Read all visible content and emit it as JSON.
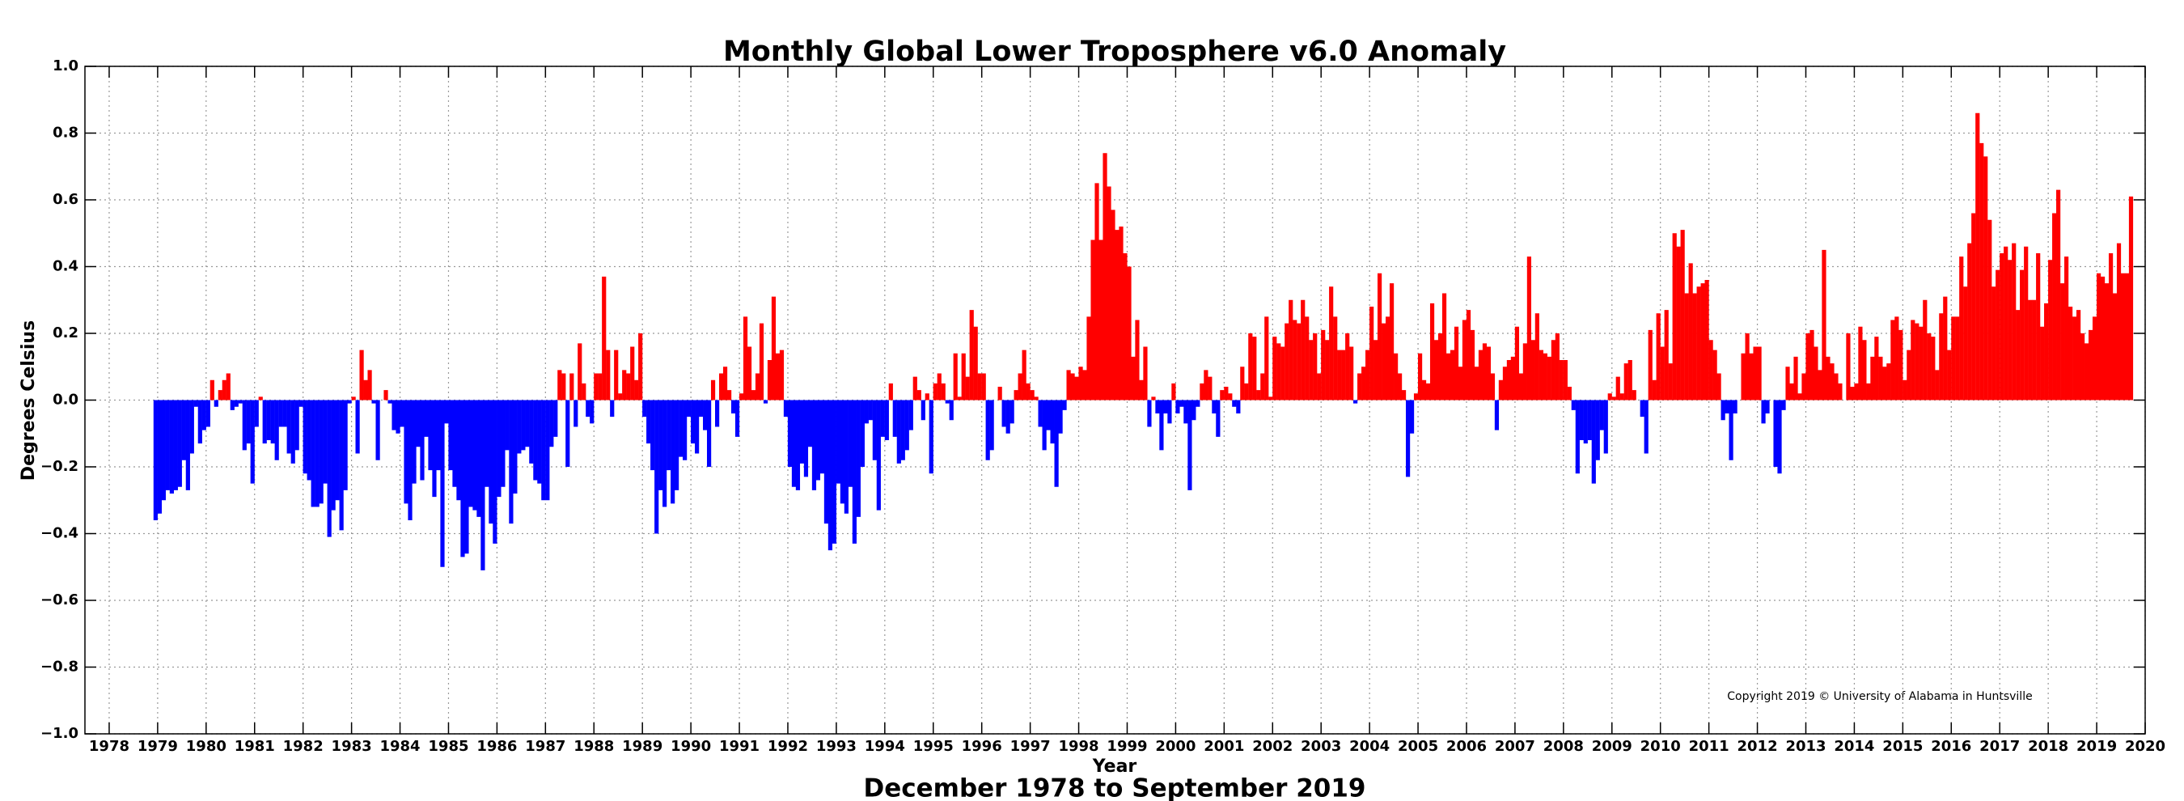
{
  "chart_data": {
    "type": "bar",
    "title": "Monthly Global Lower Troposphere v6.0 Anomaly",
    "subtitle": "December 1978 to September 2019",
    "xlabel": "Year",
    "ylabel": "Degrees Celsius",
    "annotation": "Copyright 2019 © University of Alabama in Huntsville",
    "positive_color": "#ff0000",
    "negative_color": "#0000ff",
    "grid": true,
    "xlim": [
      1977.5,
      2020
    ],
    "xticks": [
      1978,
      1979,
      1980,
      1981,
      1982,
      1983,
      1984,
      1985,
      1986,
      1987,
      1988,
      1989,
      1990,
      1991,
      1992,
      1993,
      1994,
      1995,
      1996,
      1997,
      1998,
      1999,
      2000,
      2001,
      2002,
      2003,
      2004,
      2005,
      2006,
      2007,
      2008,
      2009,
      2010,
      2011,
      2012,
      2013,
      2014,
      2015,
      2016,
      2017,
      2018,
      2019,
      2020
    ],
    "ylim": [
      -1,
      1
    ],
    "yticks": [
      {
        "value": -1,
        "label": "−1.0"
      },
      {
        "value": -0.8,
        "label": "−0.8"
      },
      {
        "value": -0.6,
        "label": "−0.6"
      },
      {
        "value": -0.4,
        "label": "−0.4"
      },
      {
        "value": -0.2,
        "label": "−0.2"
      },
      {
        "value": 0,
        "label": "0.0"
      },
      {
        "value": 0.2,
        "label": "0.2"
      },
      {
        "value": 0.4,
        "label": "0.4"
      },
      {
        "value": 0.6,
        "label": "0.6"
      },
      {
        "value": 0.8,
        "label": "0.8"
      },
      {
        "value": 1,
        "label": "1.0"
      }
    ],
    "x": [
      1978.958,
      1979.042,
      1979.125,
      1979.208,
      1979.292,
      1979.375,
      1979.458,
      1979.542,
      1979.625,
      1979.708,
      1979.792,
      1979.875,
      1979.958,
      1980.042,
      1980.125,
      1980.208,
      1980.292,
      1980.375,
      1980.458,
      1980.542,
      1980.625,
      1980.708,
      1980.792,
      1980.875,
      1980.958,
      1981.042,
      1981.125,
      1981.208,
      1981.292,
      1981.375,
      1981.458,
      1981.542,
      1981.625,
      1981.708,
      1981.792,
      1981.875,
      1981.958,
      1982.042,
      1982.125,
      1982.208,
      1982.292,
      1982.375,
      1982.458,
      1982.542,
      1982.625,
      1982.708,
      1982.792,
      1982.875,
      1982.958,
      1983.042,
      1983.125,
      1983.208,
      1983.292,
      1983.375,
      1983.458,
      1983.542,
      1983.625,
      1983.708,
      1983.792,
      1983.875,
      1983.958,
      1984.042,
      1984.125,
      1984.208,
      1984.292,
      1984.375,
      1984.458,
      1984.542,
      1984.625,
      1984.708,
      1984.792,
      1984.875,
      1984.958,
      1985.042,
      1985.125,
      1985.208,
      1985.292,
      1985.375,
      1985.458,
      1985.542,
      1985.625,
      1985.708,
      1985.792,
      1985.875,
      1985.958,
      1986.042,
      1986.125,
      1986.208,
      1986.292,
      1986.375,
      1986.458,
      1986.542,
      1986.625,
      1986.708,
      1986.792,
      1986.875,
      1986.958,
      1987.042,
      1987.125,
      1987.208,
      1987.292,
      1987.375,
      1987.458,
      1987.542,
      1987.625,
      1987.708,
      1987.792,
      1987.875,
      1987.958,
      1988.042,
      1988.125,
      1988.208,
      1988.292,
      1988.375,
      1988.458,
      1988.542,
      1988.625,
      1988.708,
      1988.792,
      1988.875,
      1988.958,
      1989.042,
      1989.125,
      1989.208,
      1989.292,
      1989.375,
      1989.458,
      1989.542,
      1989.625,
      1989.708,
      1989.792,
      1989.875,
      1989.958,
      1990.042,
      1990.125,
      1990.208,
      1990.292,
      1990.375,
      1990.458,
      1990.542,
      1990.625,
      1990.708,
      1990.792,
      1990.875,
      1990.958,
      1991.042,
      1991.125,
      1991.208,
      1991.292,
      1991.375,
      1991.458,
      1991.542,
      1991.625,
      1991.708,
      1991.792,
      1991.875,
      1991.958,
      1992.042,
      1992.125,
      1992.208,
      1992.292,
      1992.375,
      1992.458,
      1992.542,
      1992.625,
      1992.708,
      1992.792,
      1992.875,
      1992.958,
      1993.042,
      1993.125,
      1993.208,
      1993.292,
      1993.375,
      1993.458,
      1993.542,
      1993.625,
      1993.708,
      1993.792,
      1993.875,
      1993.958,
      1994.042,
      1994.125,
      1994.208,
      1994.292,
      1994.375,
      1994.458,
      1994.542,
      1994.625,
      1994.708,
      1994.792,
      1994.875,
      1994.958,
      1995.042,
      1995.125,
      1995.208,
      1995.292,
      1995.375,
      1995.458,
      1995.542,
      1995.625,
      1995.708,
      1995.792,
      1995.875,
      1995.958,
      1996.042,
      1996.125,
      1996.208,
      1996.292,
      1996.375,
      1996.458,
      1996.542,
      1996.625,
      1996.708,
      1996.792,
      1996.875,
      1996.958,
      1997.042,
      1997.125,
      1997.208,
      1997.292,
      1997.375,
      1997.458,
      1997.542,
      1997.625,
      1997.708,
      1997.792,
      1997.875,
      1997.958,
      1998.042,
      1998.125,
      1998.208,
      1998.292,
      1998.375,
      1998.458,
      1998.542,
      1998.625,
      1998.708,
      1998.792,
      1998.875,
      1998.958,
      1999.042,
      1999.125,
      1999.208,
      1999.292,
      1999.375,
      1999.458,
      1999.542,
      1999.625,
      1999.708,
      1999.792,
      1999.875,
      1999.958,
      2000.042,
      2000.125,
      2000.208,
      2000.292,
      2000.375,
      2000.458,
      2000.542,
      2000.625,
      2000.708,
      2000.792,
      2000.875,
      2000.958,
      2001.042,
      2001.125,
      2001.208,
      2001.292,
      2001.375,
      2001.458,
      2001.542,
      2001.625,
      2001.708,
      2001.792,
      2001.875,
      2001.958,
      2002.042,
      2002.125,
      2002.208,
      2002.292,
      2002.375,
      2002.458,
      2002.542,
      2002.625,
      2002.708,
      2002.792,
      2002.875,
      2002.958,
      2003.042,
      2003.125,
      2003.208,
      2003.292,
      2003.375,
      2003.458,
      2003.542,
      2003.625,
      2003.708,
      2003.792,
      2003.875,
      2003.958,
      2004.042,
      2004.125,
      2004.208,
      2004.292,
      2004.375,
      2004.458,
      2004.542,
      2004.625,
      2004.708,
      2004.792,
      2004.875,
      2004.958,
      2005.042,
      2005.125,
      2005.208,
      2005.292,
      2005.375,
      2005.458,
      2005.542,
      2005.625,
      2005.708,
      2005.792,
      2005.875,
      2005.958,
      2006.042,
      2006.125,
      2006.208,
      2006.292,
      2006.375,
      2006.458,
      2006.542,
      2006.625,
      2006.708,
      2006.792,
      2006.875,
      2006.958,
      2007.042,
      2007.125,
      2007.208,
      2007.292,
      2007.375,
      2007.458,
      2007.542,
      2007.625,
      2007.708,
      2007.792,
      2007.875,
      2007.958,
      2008.042,
      2008.125,
      2008.208,
      2008.292,
      2008.375,
      2008.458,
      2008.542,
      2008.625,
      2008.708,
      2008.792,
      2008.875,
      2008.958,
      2009.042,
      2009.125,
      2009.208,
      2009.292,
      2009.375,
      2009.458,
      2009.542,
      2009.625,
      2009.708,
      2009.792,
      2009.875,
      2009.958,
      2010.042,
      2010.125,
      2010.208,
      2010.292,
      2010.375,
      2010.458,
      2010.542,
      2010.625,
      2010.708,
      2010.792,
      2010.875,
      2010.958,
      2011.042,
      2011.125,
      2011.208,
      2011.292,
      2011.375,
      2011.458,
      2011.542,
      2011.625,
      2011.708,
      2011.792,
      2011.875,
      2011.958,
      2012.042,
      2012.125,
      2012.208,
      2012.292,
      2012.375,
      2012.458,
      2012.542,
      2012.625,
      2012.708,
      2012.792,
      2012.875,
      2012.958,
      2013.042,
      2013.125,
      2013.208,
      2013.292,
      2013.375,
      2013.458,
      2013.542,
      2013.625,
      2013.708,
      2013.792,
      2013.875,
      2013.958,
      2014.042,
      2014.125,
      2014.208,
      2014.292,
      2014.375,
      2014.458,
      2014.542,
      2014.625,
      2014.708,
      2014.792,
      2014.875,
      2014.958,
      2015.042,
      2015.125,
      2015.208,
      2015.292,
      2015.375,
      2015.458,
      2015.542,
      2015.625,
      2015.708,
      2015.792,
      2015.875,
      2015.958,
      2016.042,
      2016.125,
      2016.208,
      2016.292,
      2016.375,
      2016.458,
      2016.542,
      2016.625,
      2016.708,
      2016.792,
      2016.875,
      2016.958,
      2017.042,
      2017.125,
      2017.208,
      2017.292,
      2017.375,
      2017.458,
      2017.542,
      2017.625,
      2017.708,
      2017.792,
      2017.875,
      2017.958,
      2018.042,
      2018.125,
      2018.208,
      2018.292,
      2018.375,
      2018.458,
      2018.542,
      2018.625,
      2018.708,
      2018.792,
      2018.875,
      2018.958,
      2019.042,
      2019.125,
      2019.208,
      2019.292,
      2019.375,
      2019.458,
      2019.542,
      2019.625,
      2019.708
    ],
    "values": [
      -0.36,
      -0.34,
      -0.3,
      -0.27,
      -0.28,
      -0.27,
      -0.26,
      -0.18,
      -0.27,
      -0.16,
      -0.02,
      -0.13,
      -0.09,
      -0.08,
      0.06,
      -0.02,
      0.03,
      0.06,
      0.08,
      -0.03,
      -0.02,
      -0.01,
      -0.15,
      -0.13,
      -0.25,
      -0.08,
      0.01,
      -0.13,
      -0.12,
      -0.13,
      -0.18,
      -0.08,
      -0.08,
      -0.16,
      -0.19,
      -0.15,
      -0.02,
      -0.22,
      -0.24,
      -0.32,
      -0.32,
      -0.31,
      -0.25,
      -0.41,
      -0.33,
      -0.3,
      -0.39,
      -0.27,
      -0.01,
      0.01,
      -0.16,
      0.15,
      0.06,
      0.09,
      -0.01,
      -0.18,
      0.0,
      0.03,
      -0.01,
      -0.09,
      -0.1,
      -0.08,
      -0.31,
      -0.36,
      -0.25,
      -0.14,
      -0.24,
      -0.11,
      -0.21,
      -0.29,
      -0.21,
      -0.5,
      -0.07,
      -0.21,
      -0.26,
      -0.3,
      -0.47,
      -0.46,
      -0.32,
      -0.33,
      -0.35,
      -0.51,
      -0.26,
      -0.37,
      -0.43,
      -0.29,
      -0.26,
      -0.15,
      -0.37,
      -0.28,
      -0.16,
      -0.15,
      -0.14,
      -0.19,
      -0.24,
      -0.25,
      -0.3,
      -0.3,
      -0.14,
      -0.11,
      0.09,
      0.08,
      -0.2,
      0.08,
      -0.08,
      0.17,
      0.05,
      -0.05,
      -0.07,
      0.08,
      0.08,
      0.37,
      0.15,
      -0.05,
      0.15,
      0.02,
      0.09,
      0.08,
      0.16,
      0.06,
      0.2,
      -0.05,
      -0.13,
      -0.21,
      -0.4,
      -0.27,
      -0.32,
      -0.21,
      -0.31,
      -0.27,
      -0.17,
      -0.18,
      -0.05,
      -0.13,
      -0.16,
      -0.05,
      -0.09,
      -0.2,
      0.06,
      -0.08,
      0.08,
      0.1,
      0.03,
      -0.04,
      -0.11,
      0.02,
      0.25,
      0.16,
      0.03,
      0.08,
      0.23,
      -0.01,
      0.12,
      0.31,
      0.14,
      0.15,
      -0.05,
      -0.2,
      -0.26,
      -0.27,
      -0.19,
      -0.23,
      -0.14,
      -0.27,
      -0.24,
      -0.22,
      -0.37,
      -0.45,
      -0.43,
      -0.25,
      -0.31,
      -0.34,
      -0.26,
      -0.43,
      -0.35,
      -0.2,
      -0.07,
      -0.06,
      -0.18,
      -0.33,
      -0.11,
      -0.12,
      0.05,
      -0.11,
      -0.19,
      -0.18,
      -0.15,
      -0.09,
      0.07,
      0.03,
      -0.06,
      0.02,
      -0.22,
      0.05,
      0.08,
      0.05,
      -0.01,
      -0.06,
      0.14,
      0.01,
      0.14,
      0.07,
      0.27,
      0.22,
      0.08,
      0.08,
      -0.18,
      -0.15,
      0.0,
      0.04,
      -0.08,
      -0.1,
      -0.07,
      0.03,
      0.08,
      0.15,
      0.05,
      0.03,
      0.01,
      -0.08,
      -0.15,
      -0.09,
      -0.13,
      -0.26,
      -0.1,
      -0.03,
      0.09,
      0.08,
      0.07,
      0.1,
      0.09,
      0.25,
      0.48,
      0.65,
      0.48,
      0.74,
      0.64,
      0.57,
      0.51,
      0.52,
      0.44,
      0.4,
      0.13,
      0.24,
      0.06,
      0.16,
      -0.08,
      0.01,
      -0.04,
      -0.15,
      -0.04,
      -0.07,
      0.05,
      -0.04,
      -0.02,
      -0.07,
      -0.27,
      -0.06,
      -0.02,
      0.05,
      0.09,
      0.07,
      -0.04,
      -0.11,
      0.03,
      0.04,
      0.02,
      -0.02,
      -0.04,
      0.1,
      0.05,
      0.2,
      0.19,
      0.03,
      0.08,
      0.25,
      0.01,
      0.19,
      0.17,
      0.16,
      0.23,
      0.3,
      0.24,
      0.23,
      0.3,
      0.25,
      0.18,
      0.2,
      0.08,
      0.21,
      0.18,
      0.34,
      0.25,
      0.15,
      0.15,
      0.2,
      0.16,
      -0.01,
      0.08,
      0.1,
      0.15,
      0.28,
      0.18,
      0.38,
      0.23,
      0.25,
      0.35,
      0.14,
      0.08,
      0.03,
      -0.23,
      -0.1,
      0.02,
      0.14,
      0.06,
      0.05,
      0.29,
      0.18,
      0.2,
      0.32,
      0.14,
      0.15,
      0.22,
      0.1,
      0.24,
      0.27,
      0.21,
      0.1,
      0.15,
      0.17,
      0.16,
      0.08,
      -0.09,
      0.06,
      0.1,
      0.12,
      0.13,
      0.22,
      0.08,
      0.17,
      0.43,
      0.18,
      0.26,
      0.15,
      0.14,
      0.13,
      0.18,
      0.2,
      0.12,
      0.12,
      0.04,
      -0.03,
      -0.22,
      -0.12,
      -0.13,
      -0.12,
      -0.25,
      -0.18,
      -0.09,
      -0.16,
      0.02,
      0.01,
      0.07,
      0.02,
      0.11,
      0.12,
      0.03,
      0.0,
      -0.05,
      -0.16,
      0.21,
      0.06,
      0.26,
      0.16,
      0.27,
      0.11,
      0.5,
      0.46,
      0.51,
      0.32,
      0.41,
      0.32,
      0.34,
      0.35,
      0.36,
      0.18,
      0.15,
      0.08,
      -0.06,
      -0.04,
      -0.18,
      -0.04,
      0.0,
      0.14,
      0.2,
      0.14,
      0.16,
      0.16,
      -0.07,
      -0.04,
      0.0,
      -0.2,
      -0.22,
      -0.03,
      0.1,
      0.05,
      0.13,
      0.02,
      0.08,
      0.2,
      0.21,
      0.16,
      0.09,
      0.45,
      0.13,
      0.11,
      0.08,
      0.05,
      0.0,
      0.2,
      0.04,
      0.05,
      0.22,
      0.18,
      0.05,
      0.13,
      0.19,
      0.13,
      0.1,
      0.11,
      0.24,
      0.25,
      0.21,
      0.06,
      0.15,
      0.24,
      0.23,
      0.22,
      0.3,
      0.2,
      0.19,
      0.09,
      0.26,
      0.31,
      0.15,
      0.25,
      0.25,
      0.43,
      0.34,
      0.47,
      0.56,
      0.86,
      0.77,
      0.73,
      0.54,
      0.34,
      0.39,
      0.44,
      0.46,
      0.42,
      0.47,
      0.27,
      0.39,
      0.46,
      0.3,
      0.3,
      0.44,
      0.22,
      0.29,
      0.42,
      0.56,
      0.63,
      0.35,
      0.43,
      0.28,
      0.25,
      0.27,
      0.2,
      0.17,
      0.21,
      0.25,
      0.38,
      0.37,
      0.35,
      0.44,
      0.32,
      0.47,
      0.38,
      0.38,
      0.61
    ]
  }
}
